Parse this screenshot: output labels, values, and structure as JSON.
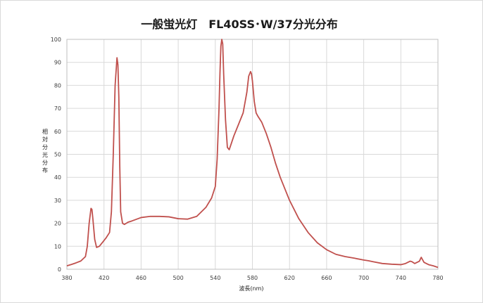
{
  "chart_data": {
    "type": "line",
    "title": "一般蛍光灯　FL40SS･W/37分光分布",
    "xlabel": "波長(nm)",
    "ylabel": "相対分光分布",
    "xlim": [
      380,
      780
    ],
    "ylim": [
      0,
      100
    ],
    "x_ticks": [
      "380",
      "420",
      "460",
      "500",
      "540",
      "580",
      "620",
      "660",
      "700",
      "740",
      "780"
    ],
    "y_ticks": [
      "0",
      "10",
      "20",
      "30",
      "40",
      "50",
      "60",
      "70",
      "80",
      "90",
      "100"
    ],
    "grid": true,
    "legend": "none",
    "line_color": "#c0504d",
    "series": [
      {
        "x": [
          380,
          385,
          390,
          395,
          400,
          402,
          404,
          406,
          407,
          408,
          410,
          412,
          415,
          418,
          422,
          426,
          428,
          430,
          432,
          434,
          435,
          436,
          437,
          438,
          440,
          442,
          446,
          450,
          460,
          470,
          480,
          490,
          500,
          510,
          520,
          530,
          536,
          540,
          542,
          544,
          545,
          546,
          547,
          548,
          549,
          551,
          553,
          555,
          560,
          565,
          570,
          574,
          576,
          578,
          579,
          580,
          582,
          584,
          586,
          590,
          595,
          600,
          605,
          610,
          620,
          630,
          640,
          650,
          660,
          670,
          680,
          690,
          700,
          705,
          710,
          720,
          730,
          740,
          745,
          750,
          752,
          755,
          760,
          762,
          765,
          770,
          775,
          780
        ],
        "y": [
          1.5,
          2.1,
          2.8,
          3.6,
          5.5,
          10,
          20,
          26.5,
          26,
          22,
          13,
          9.5,
          10,
          11.5,
          13.5,
          16,
          25,
          50,
          80,
          92,
          89,
          75,
          45,
          25,
          20,
          19.5,
          20.5,
          21,
          22.5,
          23,
          23,
          22.8,
          22,
          21.8,
          23,
          27,
          31,
          36,
          48,
          70,
          85,
          97,
          100,
          98,
          85,
          65,
          53,
          52,
          58,
          63,
          68,
          77,
          84,
          86,
          85,
          82,
          73,
          68,
          66.5,
          64,
          59,
          53,
          46,
          40,
          30,
          22,
          16,
          11.5,
          8.5,
          6.5,
          5.5,
          4.8,
          4,
          3.7,
          3.3,
          2.5,
          2.2,
          2,
          2.5,
          3.5,
          3.3,
          2.5,
          3.5,
          5.2,
          3,
          2,
          1.5,
          0.8
        ]
      }
    ]
  }
}
